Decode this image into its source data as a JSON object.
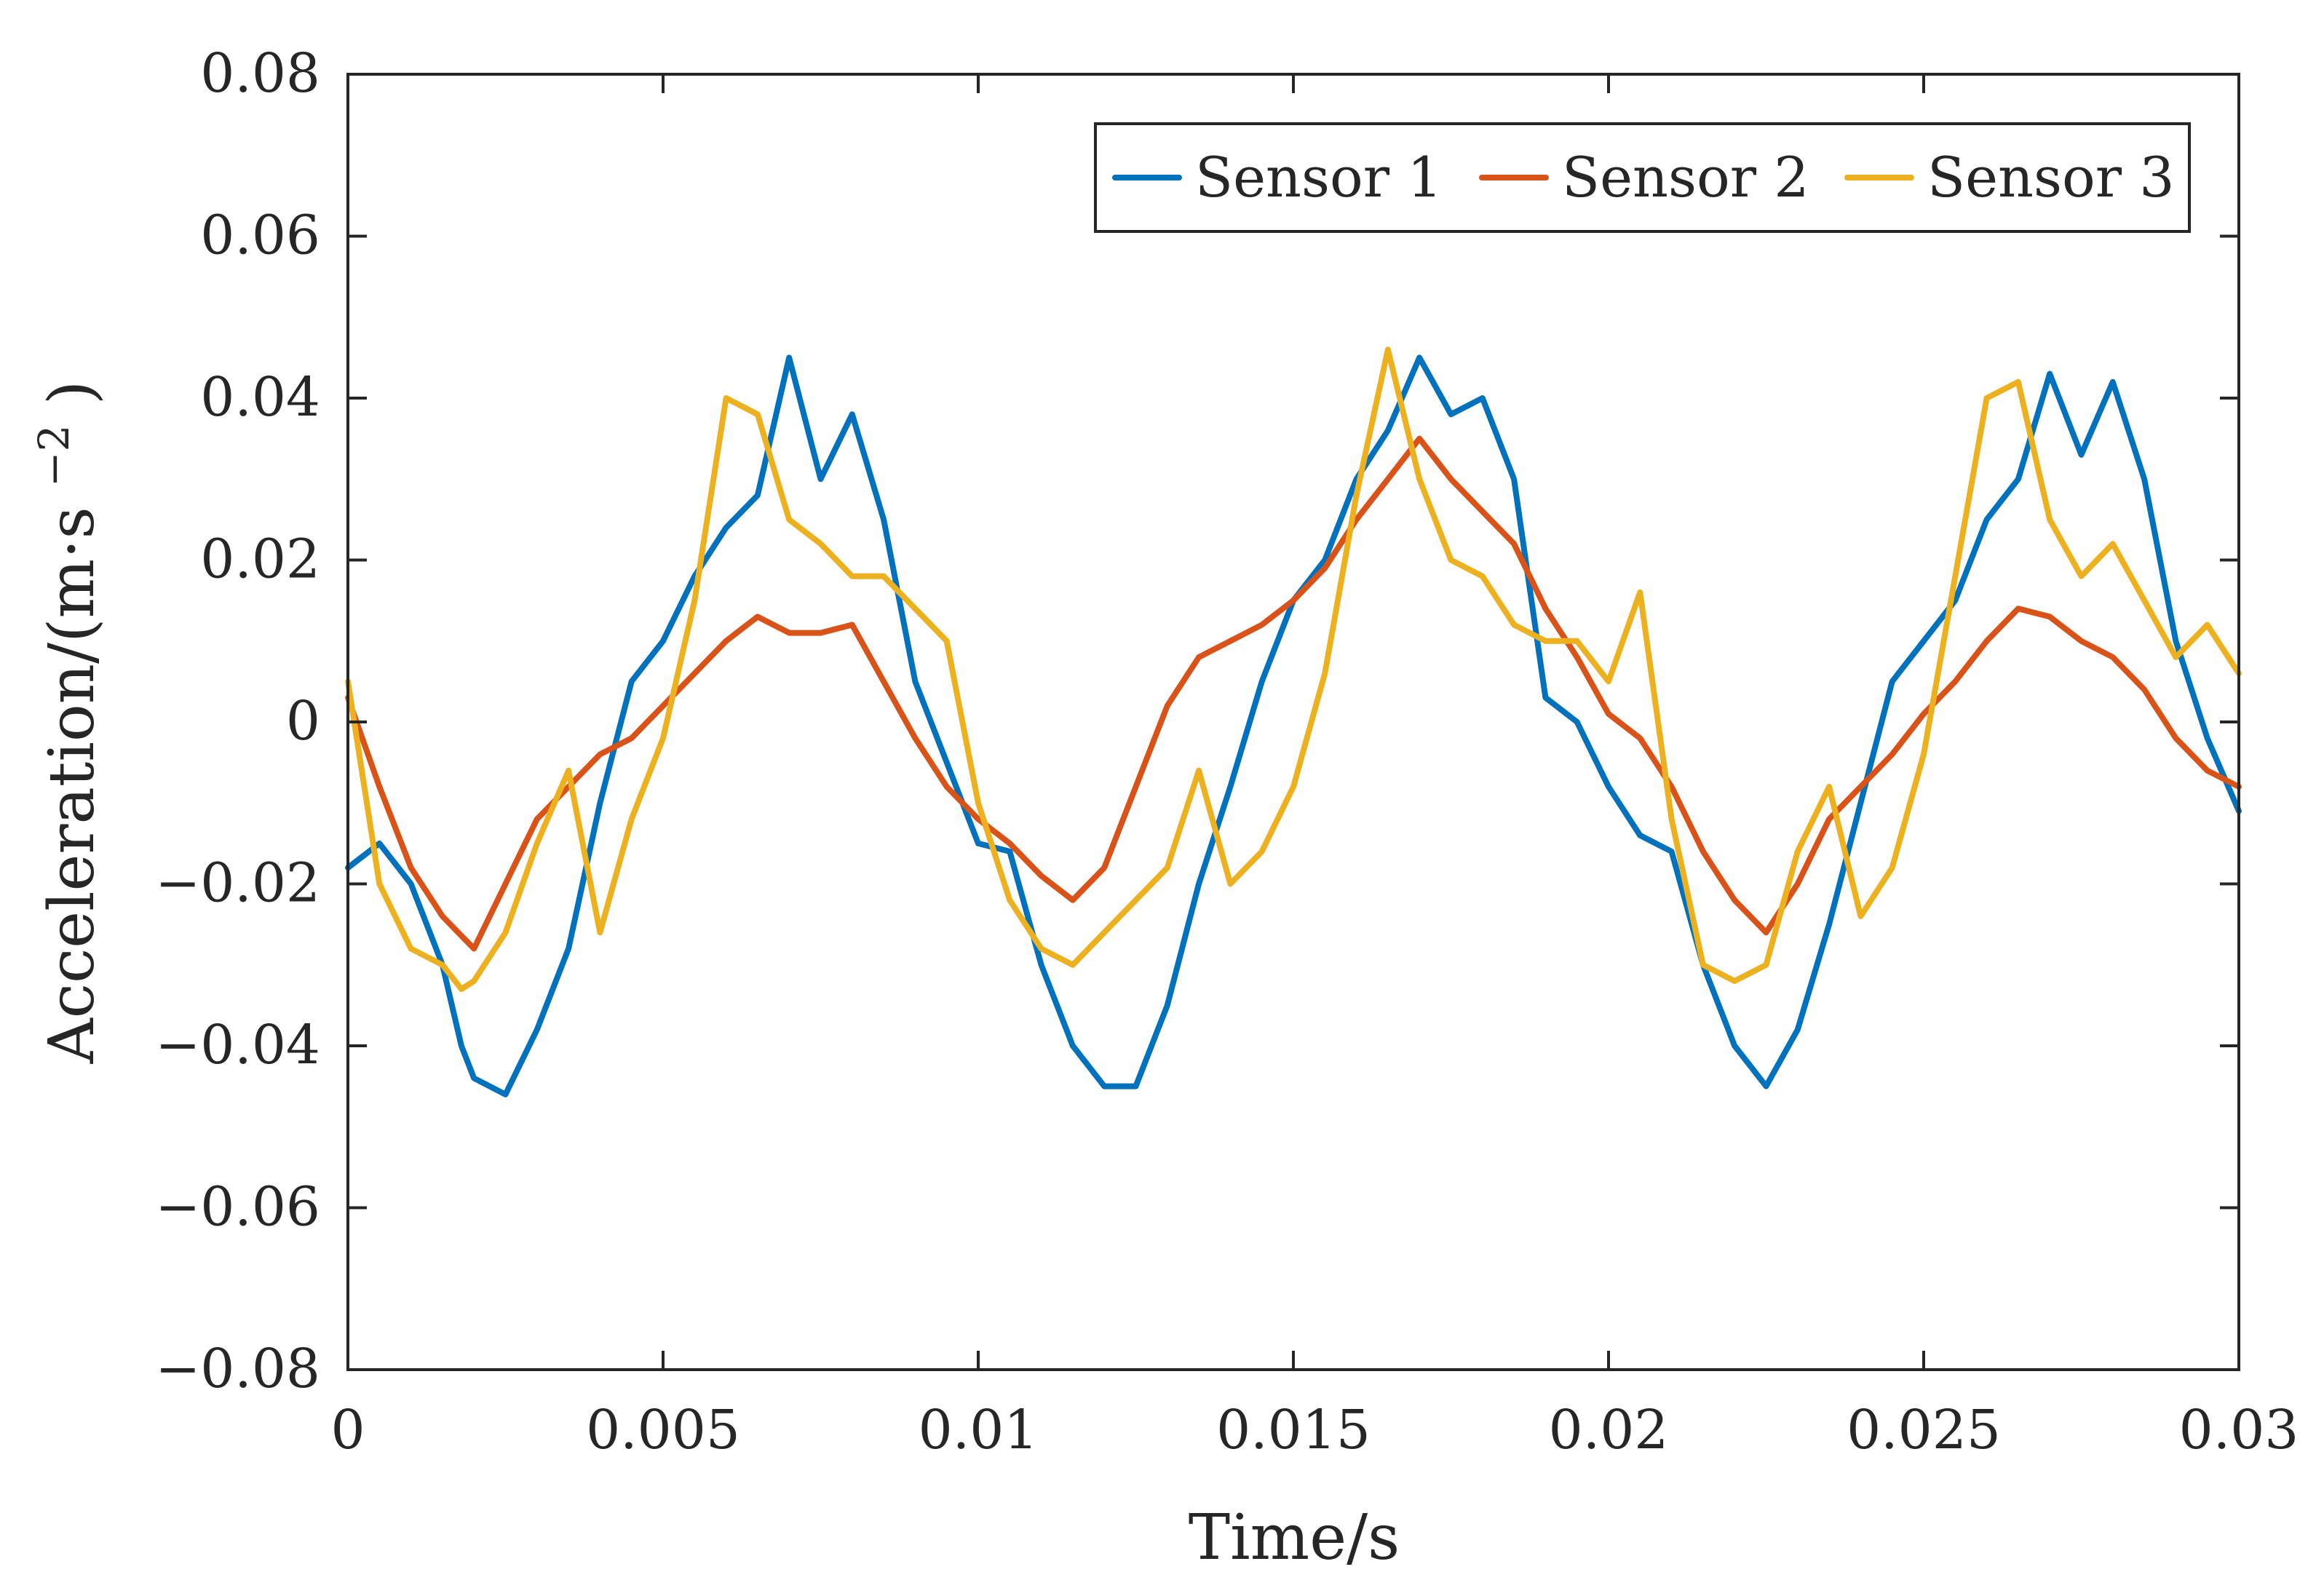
{
  "chart_data": {
    "type": "line",
    "title": "",
    "xlabel": "Time/s",
    "ylabel": "Acceleration/(m·s",
    "ylabel_power": "−2",
    "ylabel_close": ")",
    "xlim": [
      0,
      0.03
    ],
    "ylim": [
      -0.08,
      0.08
    ],
    "xticks": [
      0,
      0.005,
      0.01,
      0.015,
      0.02,
      0.025,
      0.03
    ],
    "xtick_labels": [
      "0",
      "0.005",
      "0.01",
      "0.015",
      "0.02",
      "0.025",
      "0.03"
    ],
    "yticks": [
      -0.08,
      -0.06,
      -0.04,
      -0.02,
      0,
      0.02,
      0.04,
      0.06,
      0.08
    ],
    "ytick_labels": [
      "−0.08",
      "−0.06",
      "−0.04",
      "−0.02",
      "0",
      "0.02",
      "0.04",
      "0.06",
      "0.08"
    ],
    "grid": false,
    "legend_position": "top-right",
    "series": [
      {
        "name": "Sensor 1",
        "color": "#0072BD",
        "x": [
          0,
          0.0005,
          0.001,
          0.0015,
          0.0018,
          0.002,
          0.0025,
          0.003,
          0.0035,
          0.004,
          0.0045,
          0.005,
          0.0055,
          0.006,
          0.0065,
          0.007,
          0.0075,
          0.008,
          0.0085,
          0.009,
          0.0095,
          0.01,
          0.0105,
          0.011,
          0.0115,
          0.012,
          0.0125,
          0.013,
          0.0135,
          0.014,
          0.0145,
          0.015,
          0.0155,
          0.016,
          0.0165,
          0.017,
          0.0175,
          0.018,
          0.0185,
          0.019,
          0.0195,
          0.02,
          0.0205,
          0.021,
          0.0215,
          0.022,
          0.0225,
          0.023,
          0.0235,
          0.024,
          0.0245,
          0.025,
          0.0255,
          0.026,
          0.0265,
          0.027,
          0.0275,
          0.028,
          0.0285,
          0.029,
          0.0295,
          0.03
        ],
        "y": [
          -0.018,
          -0.015,
          -0.02,
          -0.03,
          -0.04,
          -0.044,
          -0.046,
          -0.038,
          -0.028,
          -0.01,
          0.005,
          0.01,
          0.018,
          0.024,
          0.028,
          0.045,
          0.03,
          0.038,
          0.025,
          0.005,
          -0.005,
          -0.015,
          -0.016,
          -0.03,
          -0.04,
          -0.045,
          -0.045,
          -0.035,
          -0.02,
          -0.008,
          0.005,
          0.015,
          0.02,
          0.03,
          0.036,
          0.045,
          0.038,
          0.04,
          0.03,
          0.003,
          0.0,
          -0.008,
          -0.014,
          -0.016,
          -0.03,
          -0.04,
          -0.045,
          -0.038,
          -0.025,
          -0.01,
          0.005,
          0.01,
          0.015,
          0.025,
          0.03,
          0.043,
          0.033,
          0.042,
          0.03,
          0.01,
          -0.002,
          -0.011
        ]
      },
      {
        "name": "Sensor 2",
        "color": "#D95319",
        "x": [
          0,
          0.0005,
          0.001,
          0.0015,
          0.002,
          0.0025,
          0.003,
          0.0035,
          0.004,
          0.0045,
          0.005,
          0.0055,
          0.006,
          0.0065,
          0.007,
          0.0075,
          0.008,
          0.0085,
          0.009,
          0.0095,
          0.01,
          0.0105,
          0.011,
          0.0115,
          0.012,
          0.0125,
          0.013,
          0.0135,
          0.014,
          0.0145,
          0.015,
          0.0155,
          0.016,
          0.0165,
          0.017,
          0.0175,
          0.018,
          0.0185,
          0.019,
          0.0195,
          0.02,
          0.0205,
          0.021,
          0.0215,
          0.022,
          0.0225,
          0.023,
          0.0235,
          0.024,
          0.0245,
          0.025,
          0.0255,
          0.026,
          0.0265,
          0.027,
          0.0275,
          0.028,
          0.0285,
          0.029,
          0.0295,
          0.03
        ],
        "y": [
          0.003,
          -0.008,
          -0.018,
          -0.024,
          -0.028,
          -0.02,
          -0.012,
          -0.008,
          -0.004,
          -0.002,
          0.002,
          0.006,
          0.01,
          0.013,
          0.011,
          0.011,
          0.012,
          0.005,
          -0.002,
          -0.008,
          -0.012,
          -0.015,
          -0.019,
          -0.022,
          -0.018,
          -0.008,
          0.002,
          0.008,
          0.01,
          0.012,
          0.015,
          0.019,
          0.025,
          0.03,
          0.035,
          0.03,
          0.026,
          0.022,
          0.014,
          0.008,
          0.001,
          -0.002,
          -0.008,
          -0.016,
          -0.022,
          -0.026,
          -0.02,
          -0.012,
          -0.008,
          -0.004,
          0.001,
          0.005,
          0.01,
          0.014,
          0.013,
          0.01,
          0.008,
          0.004,
          -0.002,
          -0.006,
          -0.008
        ]
      },
      {
        "name": "Sensor 3",
        "color": "#EDB120",
        "x": [
          0,
          0.0005,
          0.001,
          0.0015,
          0.0018,
          0.002,
          0.0025,
          0.003,
          0.0035,
          0.004,
          0.0045,
          0.005,
          0.0055,
          0.006,
          0.0065,
          0.007,
          0.0075,
          0.008,
          0.0085,
          0.009,
          0.0095,
          0.01,
          0.0105,
          0.011,
          0.0115,
          0.012,
          0.0125,
          0.013,
          0.0135,
          0.014,
          0.0145,
          0.015,
          0.0155,
          0.016,
          0.0165,
          0.017,
          0.0175,
          0.018,
          0.0185,
          0.019,
          0.0195,
          0.02,
          0.0205,
          0.021,
          0.0215,
          0.022,
          0.0225,
          0.023,
          0.0235,
          0.024,
          0.0245,
          0.025,
          0.0255,
          0.026,
          0.0265,
          0.027,
          0.0275,
          0.028,
          0.0285,
          0.029,
          0.0295,
          0.03
        ],
        "y": [
          0.005,
          -0.02,
          -0.028,
          -0.03,
          -0.033,
          -0.032,
          -0.026,
          -0.015,
          -0.006,
          -0.026,
          -0.012,
          -0.002,
          0.015,
          0.04,
          0.038,
          0.025,
          0.022,
          0.018,
          0.018,
          0.014,
          0.01,
          -0.01,
          -0.022,
          -0.028,
          -0.03,
          -0.026,
          -0.022,
          -0.018,
          -0.006,
          -0.02,
          -0.016,
          -0.008,
          0.006,
          0.028,
          0.046,
          0.03,
          0.02,
          0.018,
          0.012,
          0.01,
          0.01,
          0.005,
          0.016,
          -0.012,
          -0.03,
          -0.032,
          -0.03,
          -0.016,
          -0.008,
          -0.024,
          -0.018,
          -0.004,
          0.018,
          0.04,
          0.042,
          0.025,
          0.018,
          0.022,
          0.015,
          0.008,
          0.012,
          0.006
        ]
      }
    ]
  }
}
